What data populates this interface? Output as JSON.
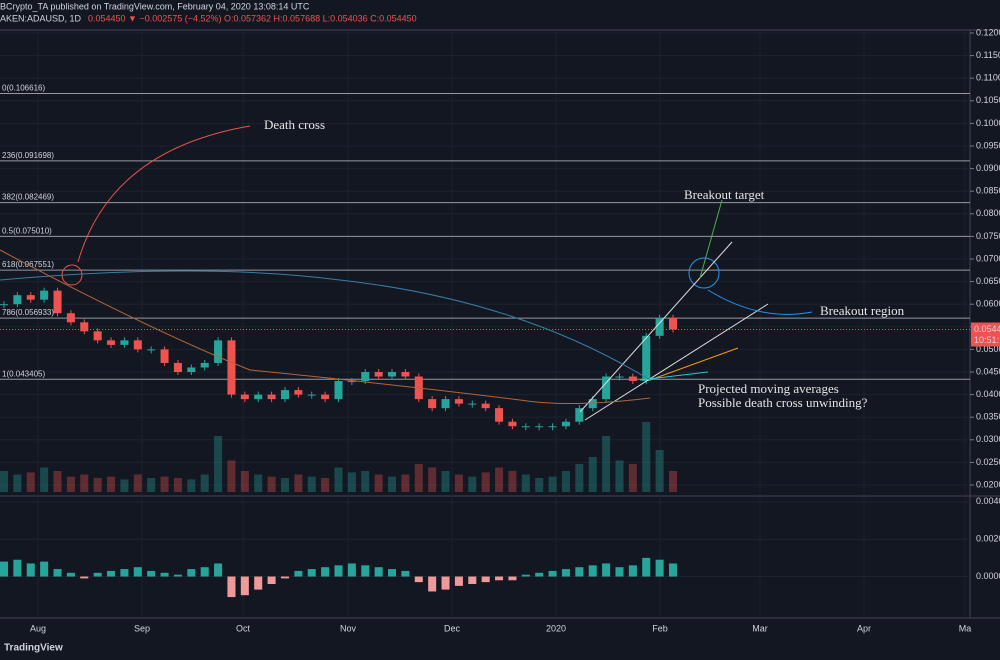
{
  "chart_data": {
    "type": "candlestick",
    "header": "BCrypto_TA published on TradingView.com, February 04, 2020 13:08:14 UTC",
    "symbol": "AKEN:ADAUSD, 1D",
    "quote": "0.054450 ▼ −0.002575 (−4.52%) O:0.057362 H:0.057688 L:0.054036 C:0.054450",
    "closes": [
      0.06,
      0.062,
      0.061,
      0.063,
      0.058,
      0.056,
      0.054,
      0.052,
      0.051,
      0.052,
      0.05,
      0.05,
      0.047,
      0.045,
      0.046,
      0.047,
      0.052,
      0.04,
      0.039,
      0.04,
      0.039,
      0.041,
      0.04,
      0.04,
      0.039,
      0.043,
      0.043,
      0.045,
      0.044,
      0.045,
      0.044,
      0.039,
      0.037,
      0.039,
      0.038,
      0.038,
      0.037,
      0.034,
      0.033,
      0.033,
      0.033,
      0.033,
      0.034,
      0.037,
      0.039,
      0.044,
      0.044,
      0.043,
      0.053,
      0.057,
      0.0544
    ],
    "volume": [
      30,
      25,
      28,
      35,
      30,
      22,
      25,
      20,
      22,
      18,
      25,
      20,
      22,
      20,
      18,
      25,
      80,
      45,
      30,
      25,
      22,
      20,
      25,
      22,
      20,
      35,
      28,
      30,
      25,
      22,
      25,
      40,
      35,
      30,
      25,
      22,
      28,
      35,
      30,
      25,
      20,
      22,
      30,
      40,
      50,
      80,
      45,
      40,
      100,
      60,
      30
    ],
    "macd_hist": [
      0.0008,
      0.0009,
      0.0007,
      0.0008,
      0.0004,
      0.0002,
      -0.0001,
      0.0002,
      0.0003,
      0.0004,
      0.0005,
      0.0003,
      0.0002,
      0.0001,
      0.0004,
      0.0005,
      0.0007,
      -0.0011,
      -0.001,
      -0.0007,
      -0.0004,
      -0.0001,
      0.0003,
      0.0004,
      0.0005,
      0.0006,
      0.0007,
      0.0006,
      0.0005,
      0.0004,
      0.0003,
      -0.0003,
      -0.0008,
      -0.0007,
      -0.0005,
      -0.0004,
      -0.0003,
      -0.0002,
      -0.0002,
      0.0001,
      0.0002,
      0.0003,
      0.0004,
      0.0005,
      0.0006,
      0.0007,
      0.0005,
      0.0006,
      0.001,
      0.0009,
      0.0007
    ],
    "ylim": [
      0.02,
      0.12
    ],
    "yticks": [
      {
        "value": 0.02,
        "label": "0.0200"
      },
      {
        "value": 0.025,
        "label": "0.0250"
      },
      {
        "value": 0.03,
        "label": "0.0300"
      },
      {
        "value": 0.035,
        "label": "0.0350"
      },
      {
        "value": 0.04,
        "label": "0.0400"
      },
      {
        "value": 0.045,
        "label": "0.0450"
      },
      {
        "value": 0.05,
        "label": "0.0500"
      },
      {
        "value": 0.055,
        "label": "0.0550"
      },
      {
        "value": 0.06,
        "label": "0.0600"
      },
      {
        "value": 0.065,
        "label": "0.0650"
      },
      {
        "value": 0.07,
        "label": "0.0700"
      },
      {
        "value": 0.075,
        "label": "0.0750"
      },
      {
        "value": 0.08,
        "label": "0.0800"
      },
      {
        "value": 0.085,
        "label": "0.0850"
      },
      {
        "value": 0.09,
        "label": "0.0900"
      },
      {
        "value": 0.095,
        "label": "0.0950"
      },
      {
        "value": 0.1,
        "label": "0.1000"
      },
      {
        "value": 0.105,
        "label": "0.1050"
      },
      {
        "value": 0.11,
        "label": "0.1100"
      },
      {
        "value": 0.115,
        "label": "0.1150"
      },
      {
        "value": 0.12,
        "label": "0.1200"
      }
    ],
    "macd_ylim": [
      -0.0019,
      0.0041
    ],
    "macd_ticks": [
      {
        "value": 0.0,
        "label": "0.0000"
      },
      {
        "value": 0.002,
        "label": "0.0020"
      },
      {
        "value": 0.004,
        "label": "0.0040"
      }
    ],
    "fib_levels": [
      {
        "value": 0.106616,
        "label": "0(0.106616)"
      },
      {
        "value": 0.091698,
        "label": "236(0.091698)"
      },
      {
        "value": 0.082469,
        "label": "382(0.082469)"
      },
      {
        "value": 0.07501,
        "label": "0.5(0.075010)"
      },
      {
        "value": 0.067551,
        "label": "618(0.067551)"
      },
      {
        "value": 0.056933,
        "label": "786(0.056933)"
      },
      {
        "value": 0.043405,
        "label": "1(0.043405)"
      }
    ],
    "last_price": {
      "value": 0.0544,
      "label": "0.0544"
    },
    "countdown": "10:51:",
    "months": [
      "Aug",
      "Sep",
      "Oct",
      "Nov",
      "Dec",
      "2020",
      "Feb",
      "Mar",
      "Apr",
      "Ma"
    ],
    "annotations": [
      "Death cross",
      "Breakout target",
      "Breakout region",
      "Projected moving averages",
      "Possible death cross unwinding?"
    ],
    "brand": "TradingView",
    "up_color": "#26a69a",
    "down_color": "#ef5350"
  }
}
